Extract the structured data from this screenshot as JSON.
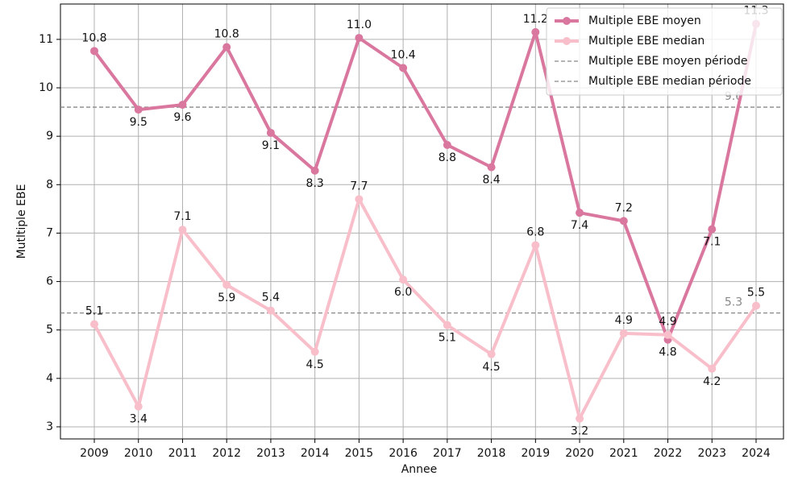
{
  "chart_data": {
    "type": "line",
    "x_label": "Annee",
    "y_label": "Mutltiple EBE",
    "categories": [
      "2009",
      "2010",
      "2011",
      "2012",
      "2013",
      "2014",
      "2015",
      "2016",
      "2017",
      "2018",
      "2019",
      "2020",
      "2021",
      "2022",
      "2023",
      "2024"
    ],
    "series": [
      {
        "name": "Multiple EBE moyen",
        "color": "#d9779f",
        "values": [
          10.76,
          9.55,
          9.65,
          10.84,
          9.07,
          8.29,
          11.03,
          10.41,
          8.82,
          8.36,
          11.15,
          7.42,
          7.25,
          4.8,
          7.08,
          11.32
        ],
        "value_labels": [
          "10.8",
          "9.5",
          "9.6",
          "10.8",
          "9.1",
          "8.3",
          "11.0",
          "10.4",
          "8.8",
          "8.4",
          "11.2",
          "7.4",
          "7.2",
          "4.8",
          "7.1",
          "11.3"
        ]
      },
      {
        "name": "Multiple EBE median",
        "color": "#f8bfca",
        "values": [
          5.12,
          3.42,
          7.07,
          5.93,
          5.4,
          4.55,
          7.7,
          6.04,
          5.1,
          4.5,
          6.75,
          3.17,
          4.93,
          4.9,
          4.2,
          5.5
        ],
        "value_labels": [
          "5.1",
          "3.4",
          "7.1",
          "5.9",
          "5.4",
          "4.5",
          "7.7",
          "6.0",
          "5.1",
          "4.5",
          "6.8",
          "3.2",
          "4.9",
          "4.9",
          "4.2",
          "5.5"
        ]
      }
    ],
    "hlines": [
      {
        "name": "Multiple EBE moyen période",
        "value": 9.6,
        "value_label": "9.6",
        "color": "#888888"
      },
      {
        "name": "Multiple EBE median période",
        "value": 5.35,
        "value_label": "5.3",
        "color": "#888888"
      }
    ],
    "ylim": [
      2.75,
      11.73
    ],
    "yticks": [
      3,
      4,
      5,
      6,
      7,
      8,
      9,
      10,
      11
    ],
    "grid": true,
    "legend": "upper right"
  }
}
